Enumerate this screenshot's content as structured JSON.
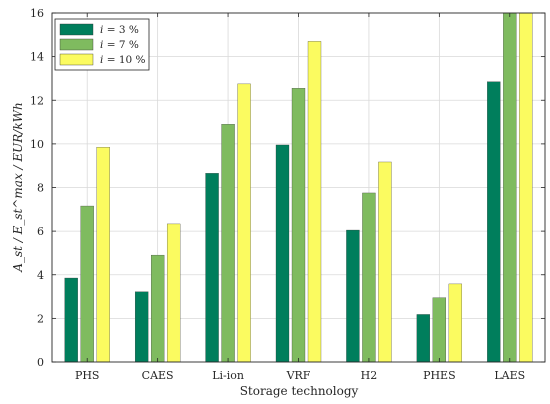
{
  "chart_data": {
    "type": "bar",
    "xlabel": "Storage technology",
    "ylabel": "A_st / E_st^max / EUR/kWh",
    "ylim": [
      0,
      16
    ],
    "yticks": [
      0,
      2,
      4,
      6,
      8,
      10,
      12,
      14,
      16
    ],
    "grid": true,
    "legend_position": "top-left",
    "categories": [
      "PHS",
      "CAES",
      "Li-ion",
      "VRF",
      "H2",
      "PHES",
      "LAES"
    ],
    "series": [
      {
        "name": "i = 3 %",
        "legend_parts": [
          "i",
          "=  3 %"
        ],
        "color": "#007e5c",
        "values": [
          3.85,
          3.22,
          8.65,
          9.95,
          6.05,
          2.18,
          12.85
        ]
      },
      {
        "name": "i = 7 %",
        "legend_parts": [
          "i",
          "=  7 %"
        ],
        "color": "#7fbb5f",
        "values": [
          7.15,
          4.9,
          10.9,
          12.55,
          7.75,
          2.95,
          16
        ]
      },
      {
        "name": "i = 10 %",
        "legend_parts": [
          "i",
          "= 10 %"
        ],
        "color": "#fbfb60",
        "values": [
          9.85,
          6.33,
          12.75,
          14.7,
          9.17,
          3.58,
          16
        ]
      }
    ]
  }
}
